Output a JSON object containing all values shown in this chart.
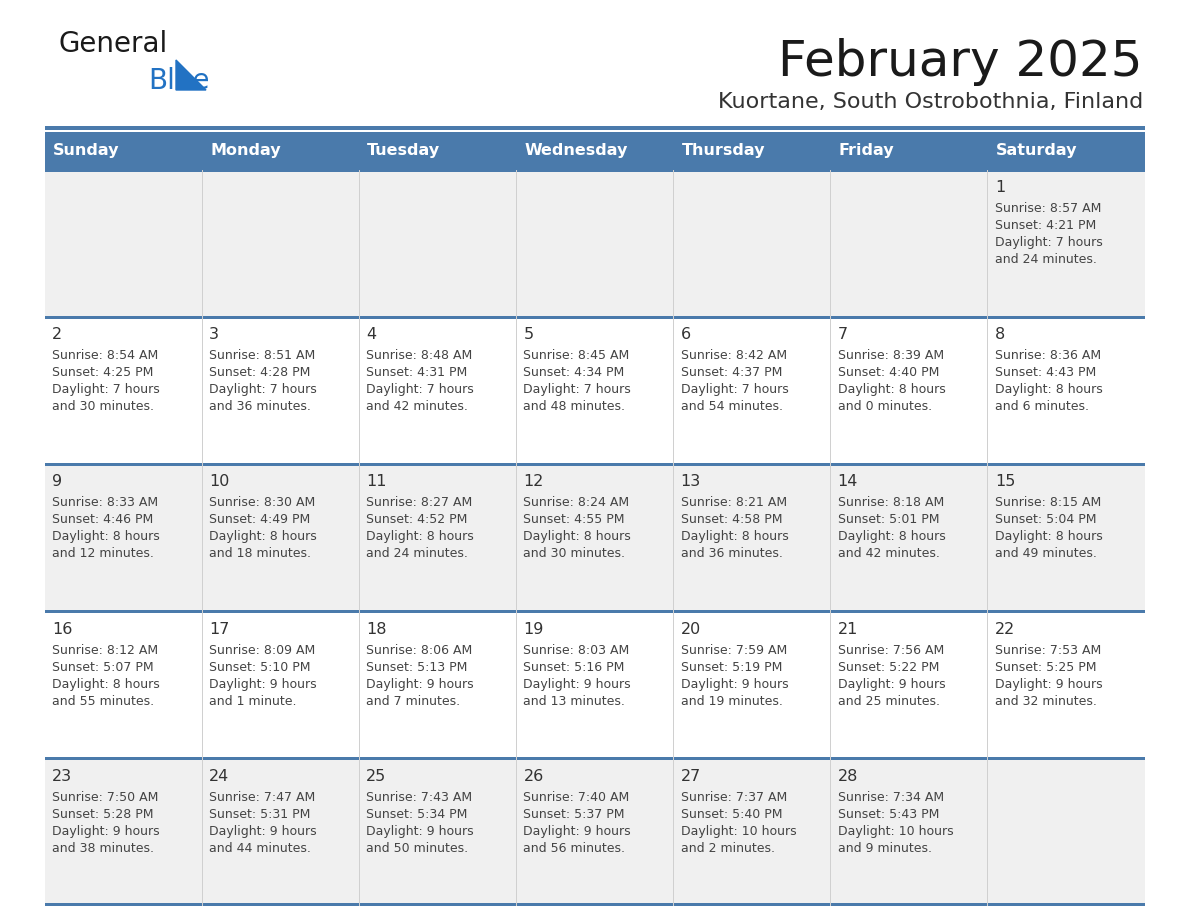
{
  "title": "February 2025",
  "subtitle": "Kuortane, South Ostrobothnia, Finland",
  "days_of_week": [
    "Sunday",
    "Monday",
    "Tuesday",
    "Wednesday",
    "Thursday",
    "Friday",
    "Saturday"
  ],
  "header_bg": "#4a7aab",
  "header_text": "#ffffff",
  "row_bg_light": "#f0f0f0",
  "row_bg_white": "#ffffff",
  "border_color": "#4a7aab",
  "day_number_color": "#333333",
  "day_text_color": "#444444",
  "logo_general_color": "#1a1a1a",
  "logo_blue_color": "#2272c3",
  "title_color": "#1a1a1a",
  "subtitle_color": "#333333",
  "calendar_data": [
    {
      "day": 1,
      "col": 6,
      "row": 0,
      "sunrise": "8:57 AM",
      "sunset": "4:21 PM",
      "daylight_line1": "Daylight: 7 hours",
      "daylight_line2": "and 24 minutes."
    },
    {
      "day": 2,
      "col": 0,
      "row": 1,
      "sunrise": "8:54 AM",
      "sunset": "4:25 PM",
      "daylight_line1": "Daylight: 7 hours",
      "daylight_line2": "and 30 minutes."
    },
    {
      "day": 3,
      "col": 1,
      "row": 1,
      "sunrise": "8:51 AM",
      "sunset": "4:28 PM",
      "daylight_line1": "Daylight: 7 hours",
      "daylight_line2": "and 36 minutes."
    },
    {
      "day": 4,
      "col": 2,
      "row": 1,
      "sunrise": "8:48 AM",
      "sunset": "4:31 PM",
      "daylight_line1": "Daylight: 7 hours",
      "daylight_line2": "and 42 minutes."
    },
    {
      "day": 5,
      "col": 3,
      "row": 1,
      "sunrise": "8:45 AM",
      "sunset": "4:34 PM",
      "daylight_line1": "Daylight: 7 hours",
      "daylight_line2": "and 48 minutes."
    },
    {
      "day": 6,
      "col": 4,
      "row": 1,
      "sunrise": "8:42 AM",
      "sunset": "4:37 PM",
      "daylight_line1": "Daylight: 7 hours",
      "daylight_line2": "and 54 minutes."
    },
    {
      "day": 7,
      "col": 5,
      "row": 1,
      "sunrise": "8:39 AM",
      "sunset": "4:40 PM",
      "daylight_line1": "Daylight: 8 hours",
      "daylight_line2": "and 0 minutes."
    },
    {
      "day": 8,
      "col": 6,
      "row": 1,
      "sunrise": "8:36 AM",
      "sunset": "4:43 PM",
      "daylight_line1": "Daylight: 8 hours",
      "daylight_line2": "and 6 minutes."
    },
    {
      "day": 9,
      "col": 0,
      "row": 2,
      "sunrise": "8:33 AM",
      "sunset": "4:46 PM",
      "daylight_line1": "Daylight: 8 hours",
      "daylight_line2": "and 12 minutes."
    },
    {
      "day": 10,
      "col": 1,
      "row": 2,
      "sunrise": "8:30 AM",
      "sunset": "4:49 PM",
      "daylight_line1": "Daylight: 8 hours",
      "daylight_line2": "and 18 minutes."
    },
    {
      "day": 11,
      "col": 2,
      "row": 2,
      "sunrise": "8:27 AM",
      "sunset": "4:52 PM",
      "daylight_line1": "Daylight: 8 hours",
      "daylight_line2": "and 24 minutes."
    },
    {
      "day": 12,
      "col": 3,
      "row": 2,
      "sunrise": "8:24 AM",
      "sunset": "4:55 PM",
      "daylight_line1": "Daylight: 8 hours",
      "daylight_line2": "and 30 minutes."
    },
    {
      "day": 13,
      "col": 4,
      "row": 2,
      "sunrise": "8:21 AM",
      "sunset": "4:58 PM",
      "daylight_line1": "Daylight: 8 hours",
      "daylight_line2": "and 36 minutes."
    },
    {
      "day": 14,
      "col": 5,
      "row": 2,
      "sunrise": "8:18 AM",
      "sunset": "5:01 PM",
      "daylight_line1": "Daylight: 8 hours",
      "daylight_line2": "and 42 minutes."
    },
    {
      "day": 15,
      "col": 6,
      "row": 2,
      "sunrise": "8:15 AM",
      "sunset": "5:04 PM",
      "daylight_line1": "Daylight: 8 hours",
      "daylight_line2": "and 49 minutes."
    },
    {
      "day": 16,
      "col": 0,
      "row": 3,
      "sunrise": "8:12 AM",
      "sunset": "5:07 PM",
      "daylight_line1": "Daylight: 8 hours",
      "daylight_line2": "and 55 minutes."
    },
    {
      "day": 17,
      "col": 1,
      "row": 3,
      "sunrise": "8:09 AM",
      "sunset": "5:10 PM",
      "daylight_line1": "Daylight: 9 hours",
      "daylight_line2": "and 1 minute."
    },
    {
      "day": 18,
      "col": 2,
      "row": 3,
      "sunrise": "8:06 AM",
      "sunset": "5:13 PM",
      "daylight_line1": "Daylight: 9 hours",
      "daylight_line2": "and 7 minutes."
    },
    {
      "day": 19,
      "col": 3,
      "row": 3,
      "sunrise": "8:03 AM",
      "sunset": "5:16 PM",
      "daylight_line1": "Daylight: 9 hours",
      "daylight_line2": "and 13 minutes."
    },
    {
      "day": 20,
      "col": 4,
      "row": 3,
      "sunrise": "7:59 AM",
      "sunset": "5:19 PM",
      "daylight_line1": "Daylight: 9 hours",
      "daylight_line2": "and 19 minutes."
    },
    {
      "day": 21,
      "col": 5,
      "row": 3,
      "sunrise": "7:56 AM",
      "sunset": "5:22 PM",
      "daylight_line1": "Daylight: 9 hours",
      "daylight_line2": "and 25 minutes."
    },
    {
      "day": 22,
      "col": 6,
      "row": 3,
      "sunrise": "7:53 AM",
      "sunset": "5:25 PM",
      "daylight_line1": "Daylight: 9 hours",
      "daylight_line2": "and 32 minutes."
    },
    {
      "day": 23,
      "col": 0,
      "row": 4,
      "sunrise": "7:50 AM",
      "sunset": "5:28 PM",
      "daylight_line1": "Daylight: 9 hours",
      "daylight_line2": "and 38 minutes."
    },
    {
      "day": 24,
      "col": 1,
      "row": 4,
      "sunrise": "7:47 AM",
      "sunset": "5:31 PM",
      "daylight_line1": "Daylight: 9 hours",
      "daylight_line2": "and 44 minutes."
    },
    {
      "day": 25,
      "col": 2,
      "row": 4,
      "sunrise": "7:43 AM",
      "sunset": "5:34 PM",
      "daylight_line1": "Daylight: 9 hours",
      "daylight_line2": "and 50 minutes."
    },
    {
      "day": 26,
      "col": 3,
      "row": 4,
      "sunrise": "7:40 AM",
      "sunset": "5:37 PM",
      "daylight_line1": "Daylight: 9 hours",
      "daylight_line2": "and 56 minutes."
    },
    {
      "day": 27,
      "col": 4,
      "row": 4,
      "sunrise": "7:37 AM",
      "sunset": "5:40 PM",
      "daylight_line1": "Daylight: 10 hours",
      "daylight_line2": "and 2 minutes."
    },
    {
      "day": 28,
      "col": 5,
      "row": 4,
      "sunrise": "7:34 AM",
      "sunset": "5:43 PM",
      "daylight_line1": "Daylight: 10 hours",
      "daylight_line2": "and 9 minutes."
    }
  ]
}
